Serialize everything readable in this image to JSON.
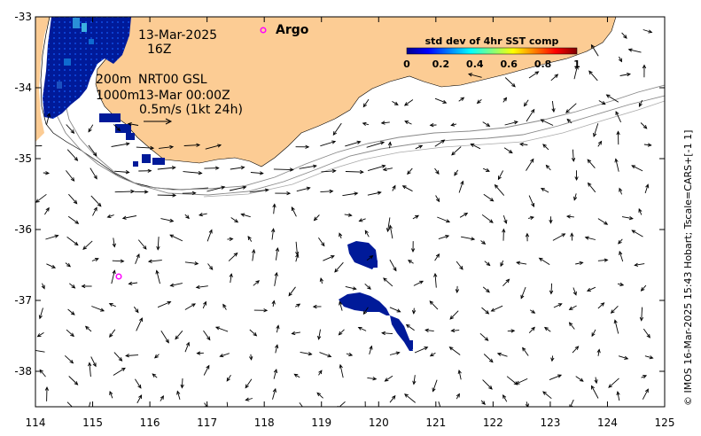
{
  "chart_data": {
    "type": "map",
    "xlim": [
      114,
      125
    ],
    "ylim": [
      -38.5,
      -33
    ],
    "x_ticks": [
      114,
      115,
      116,
      117,
      118,
      119,
      120,
      121,
      122,
      123,
      124,
      125
    ],
    "y_ticks": [
      -33,
      -34,
      -35,
      -36,
      -37,
      -38
    ],
    "annotations": {
      "date": "13-Mar-2025",
      "hour": "16Z",
      "depth_line1": "200m",
      "depth_line2": "1000m",
      "product": "NRT00 GSL",
      "analysis_time": "13-Mar 00:00Z",
      "scale_arrow": "0.5m/s (1kt 24h)",
      "argo": "Argo",
      "credit": "© IMOS 16-Mar-2025 15:43 Hobart; Tscale=CARS+[-1 1]"
    },
    "colorbar": {
      "title": "std dev of 4hr SST comp",
      "ticks": [
        "0",
        "0.2",
        "0.4",
        "0.6",
        "0.8",
        "1"
      ],
      "range": [
        0,
        1
      ]
    },
    "argo_floats": [
      {
        "lon": 118.0,
        "lat": -33.18
      },
      {
        "lon": 115.5,
        "lat": -36.67
      }
    ],
    "sst_patches": [
      {
        "lon": [
          119.6,
          119.95
        ],
        "lat": [
          -36.2,
          -36.5
        ],
        "value": 0.0
      },
      {
        "lon": [
          119.5,
          120.1
        ],
        "lat": [
          -36.95,
          -37.25
        ],
        "value": 0.0
      },
      {
        "lon": [
          120.2,
          120.55
        ],
        "lat": [
          -37.3,
          -37.65
        ],
        "value": 0.0
      }
    ],
    "colors": {
      "land": "#fccc94",
      "ocean": "#ffffff",
      "argo": "#ff00ff",
      "sst_low": "#001a99"
    }
  }
}
